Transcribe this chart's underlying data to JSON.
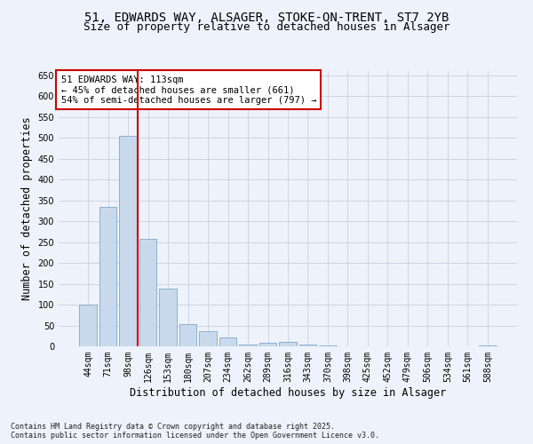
{
  "title_line1": "51, EDWARDS WAY, ALSAGER, STOKE-ON-TRENT, ST7 2YB",
  "title_line2": "Size of property relative to detached houses in Alsager",
  "xlabel": "Distribution of detached houses by size in Alsager",
  "ylabel": "Number of detached properties",
  "categories": [
    "44sqm",
    "71sqm",
    "98sqm",
    "126sqm",
    "153sqm",
    "180sqm",
    "207sqm",
    "234sqm",
    "262sqm",
    "289sqm",
    "316sqm",
    "343sqm",
    "370sqm",
    "398sqm",
    "425sqm",
    "452sqm",
    "479sqm",
    "506sqm",
    "534sqm",
    "561sqm",
    "588sqm"
  ],
  "values": [
    100,
    335,
    505,
    257,
    138,
    53,
    37,
    22,
    5,
    8,
    11,
    4,
    2,
    1,
    1,
    1,
    1,
    1,
    1,
    1,
    2
  ],
  "bar_color": "#c9d9ec",
  "bar_edge_color": "#7fa8cc",
  "vline_x_index": 2.5,
  "vline_color": "#cc0000",
  "annotation_text": "51 EDWARDS WAY: 113sqm\n← 45% of detached houses are smaller (661)\n54% of semi-detached houses are larger (797) →",
  "annotation_box_color": "#ffffff",
  "annotation_box_edge": "#cc0000",
  "ylim": [
    0,
    660
  ],
  "yticks": [
    0,
    50,
    100,
    150,
    200,
    250,
    300,
    350,
    400,
    450,
    500,
    550,
    600,
    650
  ],
  "grid_color": "#c8d0e0",
  "background_color": "#eef2fa",
  "footnote": "Contains HM Land Registry data © Crown copyright and database right 2025.\nContains public sector information licensed under the Open Government Licence v3.0.",
  "title_fontsize": 10,
  "subtitle_fontsize": 9,
  "axis_label_fontsize": 8.5,
  "tick_fontsize": 7,
  "annot_fontsize": 7.5,
  "footnote_fontsize": 6
}
